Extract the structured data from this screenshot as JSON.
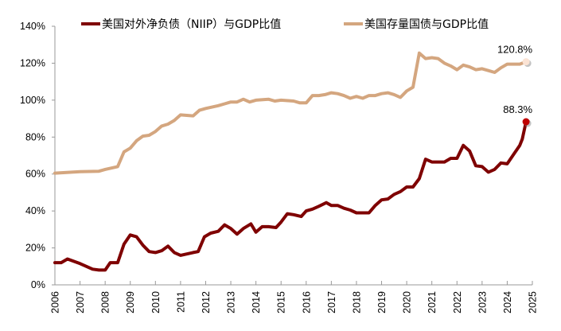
{
  "chart_data": {
    "type": "line",
    "title": "",
    "xlabel": "",
    "ylabel": "",
    "xlim": [
      2006,
      2025
    ],
    "ylim": [
      0,
      140
    ],
    "x_ticks": [
      "2006",
      "2007",
      "2008",
      "2009",
      "2010",
      "2011",
      "2012",
      "2013",
      "2014",
      "2015",
      "2016",
      "2017",
      "2018",
      "2019",
      "2020",
      "2021",
      "2022",
      "2023",
      "2024",
      "2025"
    ],
    "y_ticks": [
      "0%",
      "20%",
      "40%",
      "60%",
      "80%",
      "100%",
      "120%",
      "140%"
    ],
    "y_tick_values": [
      0,
      20,
      40,
      60,
      80,
      100,
      120,
      140
    ],
    "grid": false,
    "legend_position": "top",
    "series": [
      {
        "name": "美国对外净负债（NIIP）与GDP比值",
        "color": "#7f0000",
        "end_marker_color": "#c00000",
        "end_label": "88.3%",
        "points": [
          [
            2006,
            12
          ],
          [
            2006.25,
            12
          ],
          [
            2006.5,
            14
          ],
          [
            2007,
            11.5
          ],
          [
            2007.5,
            8.5
          ],
          [
            2007.75,
            8
          ],
          [
            2008,
            8
          ],
          [
            2008.2,
            12
          ],
          [
            2008.5,
            12
          ],
          [
            2008.75,
            22
          ],
          [
            2009,
            27
          ],
          [
            2009.25,
            26
          ],
          [
            2009.5,
            21.5
          ],
          [
            2009.75,
            18
          ],
          [
            2010,
            17.5
          ],
          [
            2010.25,
            18.5
          ],
          [
            2010.5,
            21
          ],
          [
            2010.75,
            17.5
          ],
          [
            2011,
            16
          ],
          [
            2011.5,
            17.5
          ],
          [
            2011.7,
            18
          ],
          [
            2011.95,
            26
          ],
          [
            2012.2,
            28
          ],
          [
            2012.5,
            29
          ],
          [
            2012.75,
            32.5
          ],
          [
            2013,
            30.5
          ],
          [
            2013.25,
            27.5
          ],
          [
            2013.5,
            30.5
          ],
          [
            2013.8,
            33
          ],
          [
            2014,
            28.5
          ],
          [
            2014.25,
            31.5
          ],
          [
            2014.5,
            31.5
          ],
          [
            2014.8,
            31
          ],
          [
            2015,
            34
          ],
          [
            2015.25,
            38.5
          ],
          [
            2015.5,
            38
          ],
          [
            2015.8,
            37
          ],
          [
            2016,
            40
          ],
          [
            2016.25,
            41
          ],
          [
            2016.5,
            42.5
          ],
          [
            2016.8,
            44.5
          ],
          [
            2017,
            43
          ],
          [
            2017.25,
            43
          ],
          [
            2017.5,
            41.5
          ],
          [
            2017.75,
            40.5
          ],
          [
            2018,
            39
          ],
          [
            2018.5,
            39
          ],
          [
            2018.75,
            43
          ],
          [
            2019,
            46
          ],
          [
            2019.25,
            46.5
          ],
          [
            2019.5,
            49
          ],
          [
            2019.75,
            50.5
          ],
          [
            2020,
            53
          ],
          [
            2020.25,
            53
          ],
          [
            2020.5,
            57.5
          ],
          [
            2020.75,
            68
          ],
          [
            2021,
            66.5
          ],
          [
            2021.5,
            66.5
          ],
          [
            2021.75,
            68.5
          ],
          [
            2022,
            68.5
          ],
          [
            2022.25,
            75.5
          ],
          [
            2022.5,
            72.5
          ],
          [
            2022.75,
            64.5
          ],
          [
            2023,
            64
          ],
          [
            2023.25,
            61
          ],
          [
            2023.5,
            62.5
          ],
          [
            2023.75,
            66
          ],
          [
            2024,
            65.5
          ],
          [
            2024.25,
            70.5
          ],
          [
            2024.5,
            75.5
          ],
          [
            2024.6,
            79
          ],
          [
            2024.75,
            88.3
          ]
        ]
      },
      {
        "name": "美国存量国债与GDP比值",
        "color": "#d4a67f",
        "end_marker_color": "#fbe3d4",
        "end_label": "120.8%",
        "points": [
          [
            2006,
            60.5
          ],
          [
            2007,
            61.3
          ],
          [
            2007.75,
            61.5
          ],
          [
            2008,
            62.5
          ],
          [
            2008.5,
            64
          ],
          [
            2008.75,
            72
          ],
          [
            2009,
            74
          ],
          [
            2009.25,
            78
          ],
          [
            2009.5,
            80.5
          ],
          [
            2009.75,
            81
          ],
          [
            2010,
            83
          ],
          [
            2010.25,
            86
          ],
          [
            2010.5,
            87
          ],
          [
            2010.75,
            89
          ],
          [
            2011,
            92
          ],
          [
            2011.5,
            91.5
          ],
          [
            2011.75,
            94.5
          ],
          [
            2012,
            95.5
          ],
          [
            2012.5,
            97
          ],
          [
            2012.75,
            98
          ],
          [
            2013,
            99
          ],
          [
            2013.25,
            99
          ],
          [
            2013.5,
            100.5
          ],
          [
            2013.75,
            99
          ],
          [
            2014,
            100
          ],
          [
            2014.5,
            100.5
          ],
          [
            2014.75,
            99.5
          ],
          [
            2015,
            100
          ],
          [
            2015.5,
            99.5
          ],
          [
            2015.75,
            98.5
          ],
          [
            2016,
            98.5
          ],
          [
            2016.25,
            102.5
          ],
          [
            2016.5,
            102.5
          ],
          [
            2016.75,
            103
          ],
          [
            2017,
            104
          ],
          [
            2017.25,
            103.5
          ],
          [
            2017.5,
            102.5
          ],
          [
            2017.75,
            101
          ],
          [
            2018,
            102
          ],
          [
            2018.25,
            101
          ],
          [
            2018.5,
            102.5
          ],
          [
            2018.75,
            102.5
          ],
          [
            2019,
            103.5
          ],
          [
            2019.25,
            104
          ],
          [
            2019.5,
            103
          ],
          [
            2019.75,
            101.5
          ],
          [
            2020,
            105
          ],
          [
            2020.25,
            107
          ],
          [
            2020.5,
            125.5
          ],
          [
            2020.75,
            122.5
          ],
          [
            2021,
            123
          ],
          [
            2021.25,
            122.5
          ],
          [
            2021.5,
            120
          ],
          [
            2021.75,
            118.5
          ],
          [
            2022,
            116.5
          ],
          [
            2022.25,
            119
          ],
          [
            2022.5,
            118
          ],
          [
            2022.75,
            116.5
          ],
          [
            2023,
            117
          ],
          [
            2023.25,
            116
          ],
          [
            2023.5,
            115
          ],
          [
            2023.75,
            117.5
          ],
          [
            2024,
            119.5
          ],
          [
            2024.25,
            119.5
          ],
          [
            2024.5,
            119.5
          ],
          [
            2024.75,
            120.8
          ]
        ]
      }
    ]
  }
}
